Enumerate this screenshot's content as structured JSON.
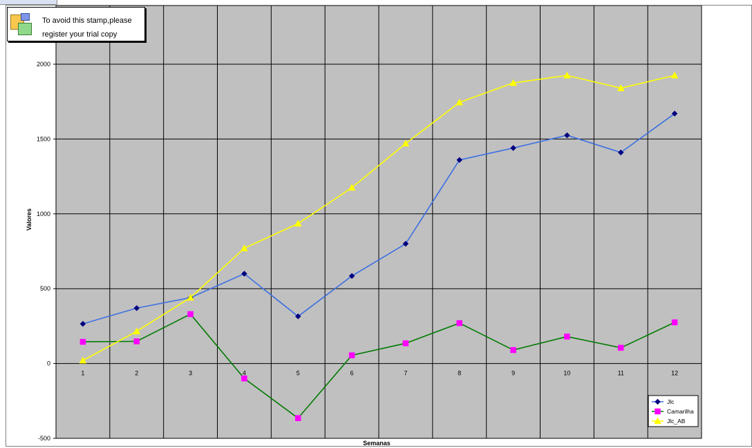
{
  "stamp": {
    "line1": "To avoid this stamp,please",
    "line2": "register your trial copy"
  },
  "chart_data": {
    "type": "line",
    "title": "",
    "xlabel": "Semanas",
    "ylabel": "Valores",
    "categories": [
      "1",
      "2",
      "3",
      "4",
      "5",
      "6",
      "7",
      "8",
      "9",
      "10",
      "11",
      "12"
    ],
    "ylim": [
      -500,
      2000
    ],
    "yticks": [
      -500,
      0,
      500,
      1000,
      1500,
      2000
    ],
    "grid": true,
    "legend_position": "bottom-right",
    "plot_background": "#c0c0c0",
    "series": [
      {
        "name": "Jlc",
        "color": "#3b6fe3",
        "marker": "diamond",
        "marker_color": "#000080",
        "values": [
          265,
          370,
          440,
          600,
          315,
          585,
          800,
          1360,
          1440,
          1525,
          1410,
          1670
        ]
      },
      {
        "name": "Camarilha",
        "color": "#007a00",
        "marker": "square",
        "marker_color": "#ff00ff",
        "values": [
          145,
          148,
          330,
          -100,
          -365,
          55,
          135,
          270,
          90,
          180,
          105,
          275
        ]
      },
      {
        "name": "Jlc_AB",
        "color": "#ffff00",
        "marker": "triangle",
        "marker_color": "#ffff00",
        "values": [
          20,
          215,
          440,
          770,
          935,
          1175,
          1470,
          1745,
          1875,
          1925,
          1840,
          1925
        ]
      }
    ]
  }
}
